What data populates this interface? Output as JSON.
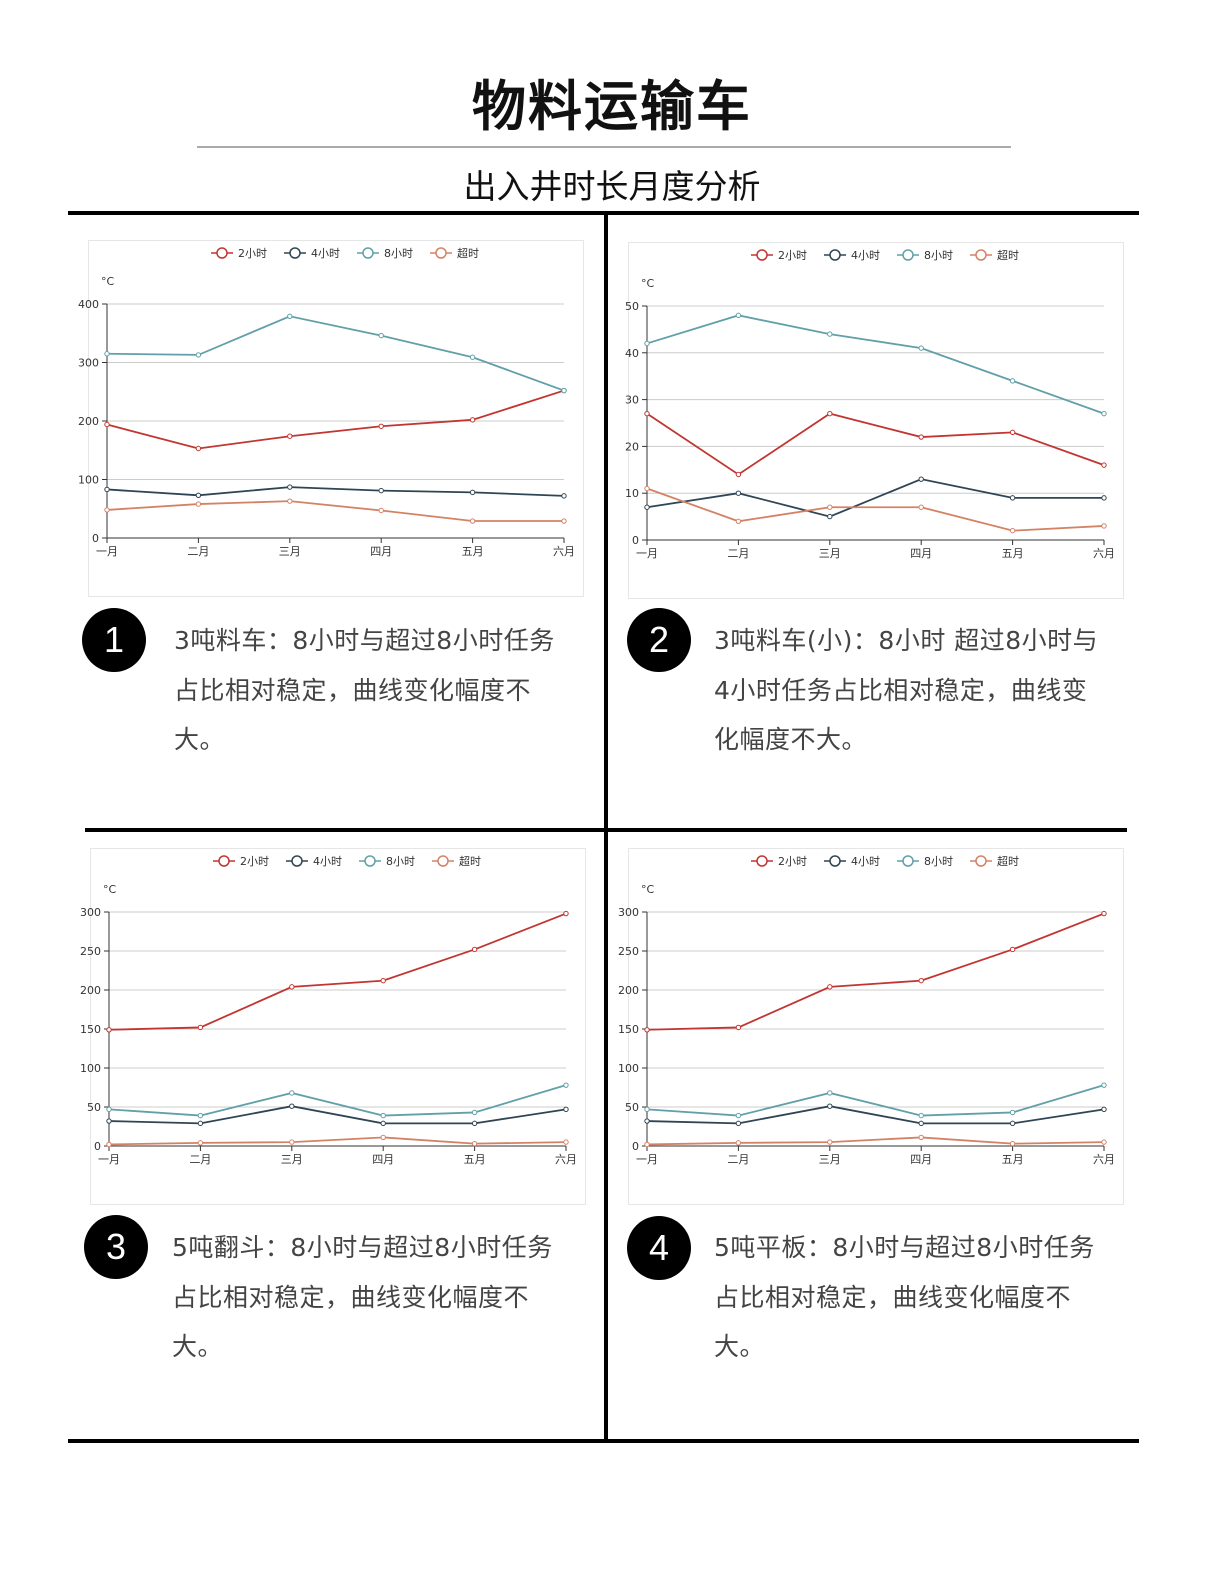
{
  "header": {
    "title": "物料运输车",
    "subtitle": "出入井时长月度分析"
  },
  "colors": {
    "2小时": "#c23531",
    "4小时": "#2f4554",
    "8小时": "#61a0a8",
    "超时": "#d48265"
  },
  "panels": [
    {
      "number": "1",
      "lines": [
        "3吨料车：8小时与超过8小时任务",
        "占比相对稳定，曲线变化幅度不",
        "大。"
      ]
    },
    {
      "number": "2",
      "lines": [
        "3吨料车(小)：8小时 超过8小时与",
        "4小时任务占比相对稳定，曲线变",
        "化幅度不大。"
      ]
    },
    {
      "number": "3",
      "lines": [
        "5吨翻斗：8小时与超过8小时任务",
        "占比相对稳定，曲线变化幅度不",
        "大。"
      ]
    },
    {
      "number": "4",
      "lines": [
        "5吨平板：8小时与超过8小时任务",
        "占比相对稳定，曲线变化幅度不",
        "大。"
      ]
    }
  ],
  "chart_data": [
    {
      "type": "line",
      "yunit": "°C",
      "categories": [
        "一月",
        "二月",
        "三月",
        "四月",
        "五月",
        "六月"
      ],
      "ylim": [
        0,
        400
      ],
      "yticks": [
        0,
        100,
        200,
        300,
        400
      ],
      "grid": true,
      "legend": "top",
      "series": [
        {
          "name": "2小时",
          "values": [
            194,
            153,
            174,
            191,
            202,
            252
          ]
        },
        {
          "name": "4小时",
          "values": [
            83,
            73,
            87,
            81,
            78,
            72
          ]
        },
        {
          "name": "8小时",
          "values": [
            315,
            313,
            379,
            346,
            309,
            252
          ]
        },
        {
          "name": "超时",
          "values": [
            48,
            58,
            63,
            47,
            29,
            29
          ]
        }
      ]
    },
    {
      "type": "line",
      "yunit": "°C",
      "categories": [
        "一月",
        "二月",
        "三月",
        "四月",
        "五月",
        "六月"
      ],
      "ylim": [
        0,
        50
      ],
      "yticks": [
        0,
        10,
        20,
        30,
        40,
        50
      ],
      "grid": true,
      "legend": "top",
      "series": [
        {
          "name": "2小时",
          "values": [
            27,
            14,
            27,
            22,
            23,
            16
          ]
        },
        {
          "name": "4小时",
          "values": [
            7,
            10,
            5,
            13,
            9,
            9
          ]
        },
        {
          "name": "8小时",
          "values": [
            42,
            48,
            44,
            41,
            34,
            27
          ]
        },
        {
          "name": "超时",
          "values": [
            11,
            4,
            7,
            7,
            2,
            3
          ]
        }
      ]
    },
    {
      "type": "line",
      "yunit": "°C",
      "categories": [
        "一月",
        "二月",
        "三月",
        "四月",
        "五月",
        "六月"
      ],
      "ylim": [
        0,
        300
      ],
      "yticks": [
        0,
        50,
        100,
        150,
        200,
        250,
        300
      ],
      "grid": true,
      "legend": "top",
      "series": [
        {
          "name": "2小时",
          "values": [
            149,
            152,
            204,
            212,
            252,
            298
          ]
        },
        {
          "name": "4小时",
          "values": [
            32,
            29,
            51,
            29,
            29,
            47
          ]
        },
        {
          "name": "8小时",
          "values": [
            47,
            39,
            68,
            39,
            43,
            78
          ]
        },
        {
          "name": "超时",
          "values": [
            2,
            4,
            5,
            11,
            3,
            5
          ]
        }
      ]
    },
    {
      "type": "line",
      "yunit": "°C",
      "categories": [
        "一月",
        "二月",
        "三月",
        "四月",
        "五月",
        "六月"
      ],
      "ylim": [
        0,
        300
      ],
      "yticks": [
        0,
        50,
        100,
        150,
        200,
        250,
        300
      ],
      "grid": true,
      "legend": "top",
      "series": [
        {
          "name": "2小时",
          "values": [
            149,
            152,
            204,
            212,
            252,
            298
          ]
        },
        {
          "name": "4小时",
          "values": [
            32,
            29,
            51,
            29,
            29,
            47
          ]
        },
        {
          "name": "8小时",
          "values": [
            47,
            39,
            68,
            39,
            43,
            78
          ]
        },
        {
          "name": "超时",
          "values": [
            2,
            4,
            5,
            11,
            3,
            5
          ]
        }
      ]
    }
  ]
}
